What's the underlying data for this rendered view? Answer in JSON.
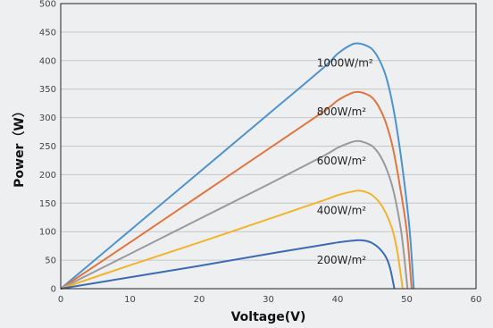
{
  "chart_data": {
    "type": "line",
    "title": "",
    "xlabel": "Voltage(V)",
    "ylabel": "Power（W）",
    "xlim": [
      0,
      60
    ],
    "ylim": [
      0,
      500
    ],
    "x_ticks": [
      0,
      10,
      20,
      30,
      40,
      50,
      60
    ],
    "y_ticks": [
      0,
      50,
      100,
      150,
      200,
      250,
      300,
      350,
      400,
      450,
      500
    ],
    "grid": "horizontal",
    "series": [
      {
        "name": "1000W/m²",
        "color": "#4f93cc",
        "points": [
          [
            0,
            0
          ],
          [
            10,
            102
          ],
          [
            20,
            204
          ],
          [
            30,
            306
          ],
          [
            38,
            388
          ],
          [
            40,
            412
          ],
          [
            42,
            428
          ],
          [
            43,
            430
          ],
          [
            44,
            427
          ],
          [
            45,
            420
          ],
          [
            46,
            402
          ],
          [
            47,
            372
          ],
          [
            48,
            320
          ],
          [
            49,
            245
          ],
          [
            50,
            150
          ],
          [
            50.5,
            90
          ],
          [
            51,
            0
          ]
        ]
      },
      {
        "name": "800W/m²",
        "color": "#e0763f",
        "points": [
          [
            0,
            0
          ],
          [
            10,
            81
          ],
          [
            20,
            163
          ],
          [
            30,
            245
          ],
          [
            38,
            311
          ],
          [
            40,
            330
          ],
          [
            42,
            343
          ],
          [
            43,
            345
          ],
          [
            44,
            342
          ],
          [
            45,
            335
          ],
          [
            46,
            318
          ],
          [
            47,
            290
          ],
          [
            48,
            246
          ],
          [
            49,
            180
          ],
          [
            50,
            100
          ],
          [
            50.7,
            0
          ]
        ]
      },
      {
        "name": "600W/m²",
        "color": "#9a9a9a",
        "points": [
          [
            0,
            0
          ],
          [
            10,
            61
          ],
          [
            20,
            122
          ],
          [
            30,
            183
          ],
          [
            38,
            233
          ],
          [
            40,
            247
          ],
          [
            42,
            257
          ],
          [
            43,
            259
          ],
          [
            44,
            256
          ],
          [
            45,
            250
          ],
          [
            46,
            236
          ],
          [
            47,
            212
          ],
          [
            48,
            175
          ],
          [
            49,
            115
          ],
          [
            49.5,
            70
          ],
          [
            50.1,
            0
          ]
        ]
      },
      {
        "name": "400W/m²",
        "color": "#f2b42c",
        "points": [
          [
            0,
            0
          ],
          [
            10,
            41
          ],
          [
            20,
            81
          ],
          [
            30,
            122
          ],
          [
            38,
            155
          ],
          [
            40,
            164
          ],
          [
            42,
            170
          ],
          [
            43,
            172
          ],
          [
            44,
            170
          ],
          [
            45,
            164
          ],
          [
            46,
            152
          ],
          [
            47,
            132
          ],
          [
            48,
            100
          ],
          [
            48.7,
            60
          ],
          [
            49.4,
            0
          ]
        ]
      },
      {
        "name": "200W/m²",
        "color": "#3c6ab4",
        "points": [
          [
            0,
            0
          ],
          [
            10,
            20
          ],
          [
            20,
            40
          ],
          [
            30,
            61
          ],
          [
            38,
            77
          ],
          [
            40,
            81
          ],
          [
            42,
            84
          ],
          [
            43,
            85
          ],
          [
            44,
            84
          ],
          [
            45,
            80
          ],
          [
            46,
            71
          ],
          [
            47,
            55
          ],
          [
            47.6,
            35
          ],
          [
            48.2,
            0
          ]
        ]
      }
    ]
  }
}
